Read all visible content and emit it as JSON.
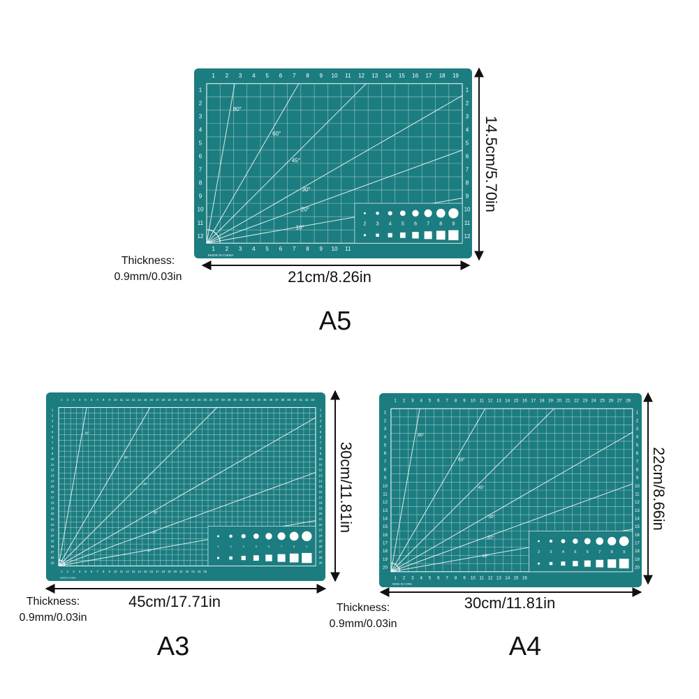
{
  "mats": [
    {
      "size": "A5",
      "width_label": "21cm/8.26in",
      "height_label": "14.5cm/5.70in",
      "thickness": [
        "Thickness:",
        "0.9mm/0.03in"
      ],
      "top_ruler": [
        1,
        2,
        3,
        4,
        5,
        6,
        7,
        8,
        9,
        10,
        11,
        12,
        13,
        14,
        15,
        16,
        17,
        18,
        19
      ],
      "side_ruler": [
        1,
        2,
        3,
        4,
        5,
        6,
        7,
        8,
        9,
        10,
        11,
        12
      ],
      "angles": [
        {
          "value": 80,
          "label": "80°"
        },
        {
          "value": 60,
          "label": "60°"
        },
        {
          "value": 45,
          "label": "45°"
        },
        {
          "value": 30,
          "label": "30°"
        },
        {
          "value": 20,
          "label": "20°"
        },
        {
          "value": 10,
          "label": "10°"
        }
      ],
      "circle_labels": [
        2,
        3,
        4,
        5,
        6,
        7,
        8,
        9
      ],
      "made_in": "MADE IN CHINA"
    },
    {
      "size": "A3",
      "width_label": "45cm/17.71in",
      "height_label": "30cm/11.81in",
      "thickness": [
        "Thickness:",
        "0.9mm/0.03in"
      ],
      "top_ruler": [
        1,
        2,
        3,
        4,
        5,
        6,
        7,
        8,
        9,
        10,
        11,
        12,
        13,
        14,
        15,
        16,
        17,
        18,
        19,
        20,
        21,
        22,
        23,
        24,
        25,
        26,
        27,
        28,
        29,
        30,
        31,
        32,
        33,
        34,
        35,
        36,
        37,
        38,
        39,
        40,
        41,
        42,
        43
      ],
      "side_ruler": [
        1,
        2,
        3,
        4,
        5,
        6,
        7,
        8,
        9,
        10,
        11,
        12,
        13,
        14,
        15,
        16,
        17,
        18,
        19,
        20,
        21,
        22,
        23,
        24,
        25,
        26,
        27,
        28,
        29
      ],
      "angles": [
        {
          "value": 80,
          "label": "80°"
        },
        {
          "value": 60,
          "label": "60°"
        },
        {
          "value": 45,
          "label": "45°"
        },
        {
          "value": 30,
          "label": "30°"
        },
        {
          "value": 20,
          "label": "20°"
        },
        {
          "value": 10,
          "label": "10°"
        }
      ],
      "circle_labels": [
        2,
        3,
        4,
        5,
        6,
        7,
        8,
        9
      ],
      "made_in": "MADE IN CHINA"
    },
    {
      "size": "A4",
      "width_label": "30cm/11.81in",
      "height_label": "22cm/8.66in",
      "thickness": [
        "Thickness:",
        "0.9mm/0.03in"
      ],
      "top_ruler": [
        1,
        2,
        3,
        4,
        5,
        6,
        7,
        8,
        9,
        10,
        11,
        12,
        13,
        14,
        15,
        16,
        17,
        18,
        19,
        20,
        21,
        22,
        23,
        24,
        25,
        26,
        27,
        28
      ],
      "side_ruler": [
        1,
        2,
        3,
        4,
        5,
        6,
        7,
        8,
        9,
        10,
        11,
        12,
        13,
        14,
        15,
        16,
        17,
        18,
        19,
        20
      ],
      "angles": [
        {
          "value": 80,
          "label": "80°"
        },
        {
          "value": 60,
          "label": "60°"
        },
        {
          "value": 45,
          "label": "45°"
        },
        {
          "value": 30,
          "label": "30°"
        },
        {
          "value": 20,
          "label": "20°"
        },
        {
          "value": 10,
          "label": "10°"
        }
      ],
      "circle_labels": [
        2,
        3,
        4,
        5,
        6,
        7,
        8,
        9
      ],
      "made_in": "MADE IN CHINA"
    }
  ]
}
